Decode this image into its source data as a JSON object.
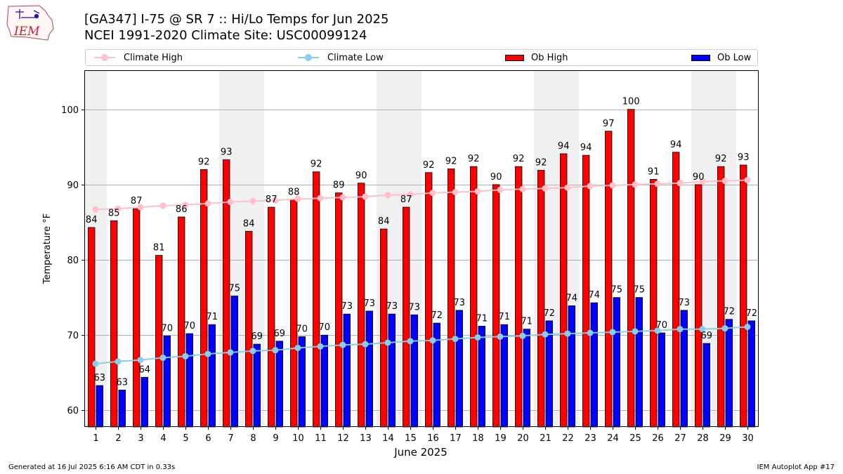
{
  "header": {
    "logo_text": "IEM",
    "title_line1": "[GA347] I-75 @ SR 7 :: Hi/Lo Temps for Jun 2025",
    "title_line2": "NCEI 1991-2020 Climate Site: USC00099124"
  },
  "footer": {
    "generated": "Generated at 16 Jul 2025 6:16 AM CDT in 0.33s",
    "app": "IEM Autoplot App #17"
  },
  "legend": {
    "climate_high": "Climate High",
    "climate_low": "Climate Low",
    "ob_high": "Ob High",
    "ob_low": "Ob Low",
    "placement": "top, above plot"
  },
  "chart_data": {
    "type": "bar",
    "xlabel": "June 2025",
    "ylabel": "Temperature °F",
    "ylim": [
      57.8,
      105.2
    ],
    "yticks": [
      60,
      70,
      80,
      90,
      100
    ],
    "grid": "horizontal",
    "categories": [
      "1",
      "2",
      "3",
      "4",
      "5",
      "6",
      "7",
      "8",
      "9",
      "10",
      "11",
      "12",
      "13",
      "14",
      "15",
      "16",
      "17",
      "18",
      "19",
      "20",
      "21",
      "22",
      "23",
      "24",
      "25",
      "26",
      "27",
      "28",
      "29",
      "30"
    ],
    "weekend_shading_days": [
      1,
      7,
      8,
      14,
      15,
      21,
      22,
      28,
      29
    ],
    "bar_series": [
      {
        "name": "Ob High",
        "color": "#ff0000",
        "values": [
          84.3,
          85.2,
          86.8,
          80.6,
          85.7,
          92.0,
          93.3,
          83.8,
          87.0,
          88.0,
          91.7,
          88.9,
          90.2,
          84.1,
          87.0,
          91.6,
          92.1,
          92.4,
          90.0,
          92.4,
          91.9,
          94.1,
          93.9,
          97.1,
          100.0,
          90.7,
          94.3,
          90.0,
          92.4,
          92.6
        ],
        "labels": [
          "84",
          "85",
          "87",
          "81",
          "86",
          "92",
          "93",
          "84",
          "87",
          "88",
          "92",
          "89",
          "90",
          "84",
          "87",
          "92",
          "92",
          "92",
          "90",
          "92",
          "92",
          "94",
          "94",
          "97",
          "100",
          "91",
          "94",
          "90",
          "92",
          "93"
        ]
      },
      {
        "name": "Ob Low",
        "color": "#0000ff",
        "values": [
          63.3,
          62.7,
          64.4,
          69.9,
          70.2,
          71.4,
          75.2,
          68.8,
          69.2,
          69.8,
          70.0,
          72.8,
          73.2,
          72.8,
          72.7,
          71.6,
          73.3,
          71.2,
          71.4,
          70.8,
          71.9,
          73.9,
          74.3,
          75.0,
          75.0,
          70.3,
          73.3,
          68.9,
          72.1,
          71.9
        ],
        "labels": [
          "63",
          "63",
          "64",
          "70",
          "70",
          "71",
          "75",
          "69",
          "69",
          "70",
          "70",
          "73",
          "73",
          "73",
          "73",
          "72",
          "73",
          "71",
          "71",
          "71",
          "72",
          "74",
          "74",
          "75",
          "75",
          "70",
          "73",
          "69",
          "72",
          "72"
        ]
      }
    ],
    "line_series": [
      {
        "name": "Climate High",
        "color": "#ffc0cb",
        "values": [
          86.7,
          86.8,
          87.0,
          87.2,
          87.3,
          87.5,
          87.7,
          87.8,
          87.9,
          88.1,
          88.2,
          88.3,
          88.4,
          88.6,
          88.7,
          88.9,
          89.0,
          89.1,
          89.3,
          89.4,
          89.5,
          89.6,
          89.8,
          89.9,
          90.0,
          90.1,
          90.2,
          90.4,
          90.5,
          90.6
        ]
      },
      {
        "name": "Climate Low",
        "color": "#87ceeb",
        "values": [
          66.2,
          66.5,
          66.7,
          67.0,
          67.2,
          67.5,
          67.7,
          67.9,
          68.0,
          68.3,
          68.5,
          68.7,
          68.8,
          69.0,
          69.2,
          69.3,
          69.5,
          69.7,
          69.8,
          69.9,
          70.1,
          70.2,
          70.3,
          70.4,
          70.5,
          70.6,
          70.8,
          70.8,
          70.9,
          71.1
        ]
      }
    ]
  }
}
